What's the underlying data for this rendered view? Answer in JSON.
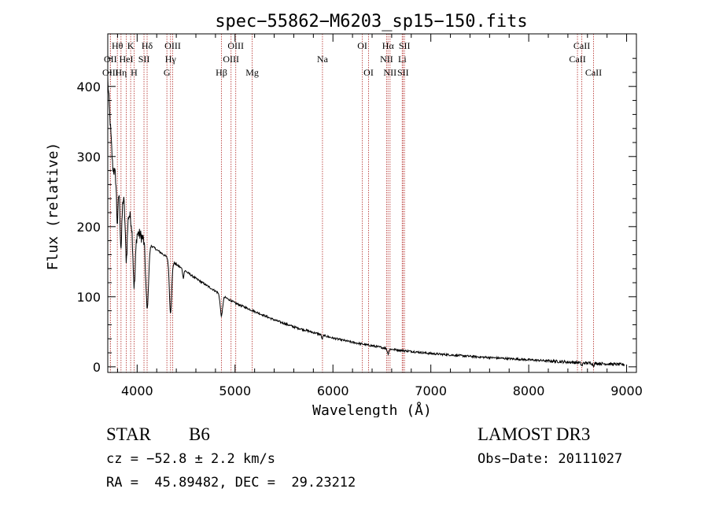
{
  "chart_data": {
    "type": "line",
    "title": "spec−55862−M6203_sp15−150.fits",
    "xlabel": "Wavelength (Å)",
    "ylabel": "Flux (relative)",
    "xlim": [
      3700,
      9100
    ],
    "ylim": [
      -8,
      475
    ],
    "x_ticks": [
      4000,
      5000,
      6000,
      7000,
      8000,
      9000
    ],
    "x_tick_labels": [
      "4000",
      "5000",
      "6000",
      "7000",
      "8000",
      "9000"
    ],
    "y_ticks": [
      0,
      100,
      200,
      300,
      400
    ],
    "y_tick_labels": [
      "0",
      "100",
      "200",
      "300",
      "400"
    ],
    "grid": false,
    "line_markers": [
      {
        "label": "Hθ",
        "wavelength": 3798,
        "row": 1
      },
      {
        "label": "OII",
        "wavelength": 3727,
        "row": 2
      },
      {
        "label": "OIII",
        "wavelength": 3727,
        "row": 3
      },
      {
        "label": "HeI",
        "wavelength": 3889,
        "row": 2
      },
      {
        "label": "Hη",
        "wavelength": 3835,
        "row": 3
      },
      {
        "label": "K",
        "wavelength": 3934,
        "row": 1
      },
      {
        "label": "H",
        "wavelength": 3969,
        "row": 3
      },
      {
        "label": "SII",
        "wavelength": 4070,
        "row": 2
      },
      {
        "label": "Hδ",
        "wavelength": 4102,
        "row": 1
      },
      {
        "label": "OIII",
        "wavelength": 4363,
        "row": 1
      },
      {
        "label": "Hγ",
        "wavelength": 4341,
        "row": 2
      },
      {
        "label": "G",
        "wavelength": 4304,
        "row": 3
      },
      {
        "label": "Hβ",
        "wavelength": 4861,
        "row": 3
      },
      {
        "label": "OIII",
        "wavelength": 4959,
        "row": 2
      },
      {
        "label": "OIII",
        "wavelength": 5007,
        "row": 1
      },
      {
        "label": "Mg",
        "wavelength": 5175,
        "row": 3
      },
      {
        "label": "Na",
        "wavelength": 5893,
        "row": 2
      },
      {
        "label": "OI",
        "wavelength": 6300,
        "row": 1
      },
      {
        "label": "OI",
        "wavelength": 6364,
        "row": 3
      },
      {
        "label": "NII",
        "wavelength": 6548,
        "row": 2
      },
      {
        "label": "NII",
        "wavelength": 6583,
        "row": 3
      },
      {
        "label": "Hα",
        "wavelength": 6563,
        "row": 1
      },
      {
        "label": "SII",
        "wavelength": 6716,
        "row": 3
      },
      {
        "label": "SII",
        "wavelength": 6731,
        "row": 1
      },
      {
        "label": "Li",
        "wavelength": 6708,
        "row": 2
      },
      {
        "label": "CaII",
        "wavelength": 8498,
        "row": 2
      },
      {
        "label": "CaII",
        "wavelength": 8542,
        "row": 1
      },
      {
        "label": "CaII",
        "wavelength": 8662,
        "row": 3
      }
    ],
    "continuum": [
      [
        3700,
        410
      ],
      [
        3750,
        285
      ],
      [
        3800,
        265
      ],
      [
        3850,
        245
      ],
      [
        3900,
        225
      ],
      [
        3950,
        205
      ],
      [
        4000,
        192
      ],
      [
        4100,
        178
      ],
      [
        4200,
        167
      ],
      [
        4300,
        157
      ],
      [
        4400,
        146
      ],
      [
        4500,
        136
      ],
      [
        4600,
        126
      ],
      [
        4700,
        117
      ],
      [
        4800,
        108
      ],
      [
        4900,
        99
      ],
      [
        5000,
        91
      ],
      [
        5200,
        79
      ],
      [
        5400,
        67
      ],
      [
        5600,
        57
      ],
      [
        5800,
        49
      ],
      [
        6000,
        41
      ],
      [
        6200,
        35
      ],
      [
        6400,
        30
      ],
      [
        6600,
        25
      ],
      [
        6800,
        22
      ],
      [
        7000,
        19
      ],
      [
        7500,
        14
      ],
      [
        8000,
        10
      ],
      [
        8500,
        6
      ],
      [
        9000,
        3
      ]
    ],
    "absorption_lines": [
      [
        3798,
        60,
        8
      ],
      [
        3835,
        80,
        9
      ],
      [
        3889,
        75,
        10
      ],
      [
        3970,
        85,
        12
      ],
      [
        4102,
        95,
        14
      ],
      [
        4341,
        75,
        12
      ],
      [
        4861,
        30,
        12
      ],
      [
        4471,
        12,
        6
      ],
      [
        5890,
        6,
        6
      ],
      [
        6563,
        7,
        8
      ],
      [
        8542,
        4,
        8
      ],
      [
        8662,
        3,
        8
      ]
    ],
    "noise": 3
  },
  "info": {
    "object_class": "STAR",
    "subclass": "B6",
    "survey": "LAMOST DR3",
    "cz": "cz = −52.8 ± 2.2 km/s",
    "obs_date": "Obs−Date: 20111027",
    "coords": "RA =  45.89482, DEC =  29.23212"
  },
  "colors": {
    "line_marker": "#c0504d",
    "spectrum": "#000000"
  }
}
